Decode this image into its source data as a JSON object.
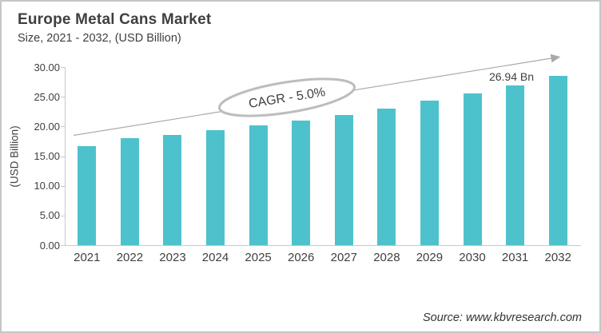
{
  "header": {
    "title": "Europe Metal Cans Market",
    "subtitle": "Size, 2021 - 2032, (USD Billion)"
  },
  "chart_data": {
    "type": "bar",
    "title": "Europe Metal Cans Market",
    "subtitle": "Size, 2021 - 2032, (USD Billion)",
    "categories": [
      "2021",
      "2022",
      "2023",
      "2024",
      "2025",
      "2026",
      "2027",
      "2028",
      "2029",
      "2030",
      "2031",
      "2032"
    ],
    "values": [
      16.7,
      18.0,
      18.6,
      19.4,
      20.2,
      21.0,
      22.0,
      23.0,
      24.3,
      25.5,
      26.94,
      28.5
    ],
    "xlabel": "",
    "ylabel": "(USD Billion)",
    "ylim": [
      0,
      30
    ],
    "ytick_step": 5,
    "ytick_labels": [
      "0.00",
      "5.00",
      "10.00",
      "15.00",
      "20.00",
      "25.00",
      "30.00"
    ],
    "grid": false,
    "legend_position": "none",
    "annotations": {
      "cagr_label": "CAGR - 5.0%",
      "value_label": "26.94 Bn",
      "value_label_category": "2031",
      "trend_arrow": "rising left-to-right"
    }
  },
  "footer": {
    "source": "Source: www.kbvresearch.com"
  },
  "colors": {
    "bar": "#4dc2cd",
    "title_text": "#3f3f3f",
    "axis_text": "#404040",
    "axis_line": "#c9c9c9",
    "trend_line": "#a9a9a9",
    "ellipse_stroke": "#bdbdbd",
    "frame_border": "#c6c6c6",
    "background": "#ffffff"
  }
}
